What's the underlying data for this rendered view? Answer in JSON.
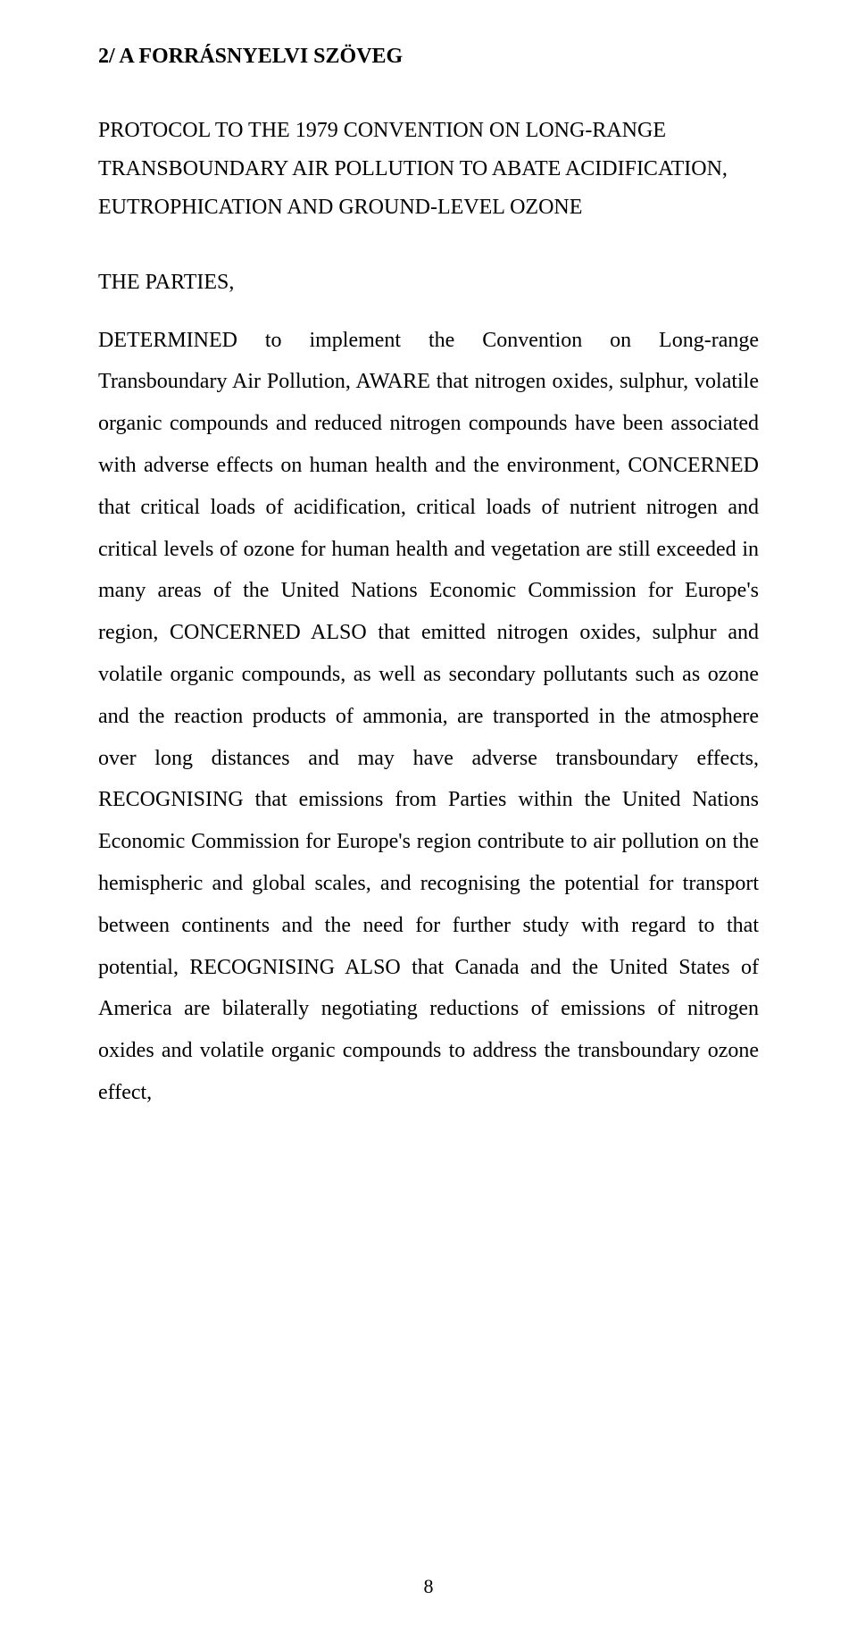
{
  "heading": "2/ A FORRÁSNYELVI SZÖVEG",
  "title": "PROTOCOL TO THE 1979 CONVENTION ON LONG-RANGE TRANSBOUNDARY AIR POLLUTION TO ABATE ACIDIFICATION, EUTROPHICATION AND GROUND-LEVEL OZONE",
  "parties": "THE PARTIES,",
  "body": "DETERMINED to implement the Convention on Long-range Transboundary Air Pollution, AWARE that nitrogen oxides, sulphur, volatile organic compounds and reduced nitrogen compounds have been associated with adverse effects on human health and the environment, CONCERNED that critical loads of acidification, critical loads of nutrient nitrogen and critical levels of ozone for human health and vegetation are still exceeded in many areas of the United Nations Economic Commission for Europe's region, CONCERNED ALSO that emitted nitrogen oxides, sulphur and volatile organic compounds, as well as secondary pollutants such as ozone and the reaction products of ammonia, are transported in the atmosphere over long distances and may have adverse transboundary effects, RECOGNISING that emissions from Parties within the United Nations Economic Commission for Europe's region contribute to air pollution on the hemispheric and global scales, and recognising the potential for transport between continents and the need for further study with regard to that potential, RECOGNISING ALSO that Canada and the United States of America are bilaterally negotiating reductions of emissions of nitrogen oxides and volatile organic compounds to address the transboundary ozone effect,",
  "page_number": "8",
  "colors": {
    "background": "#ffffff",
    "text": "#000000"
  },
  "typography": {
    "font_family": "Times New Roman",
    "body_fontsize_pt": 18,
    "line_height": 1.95
  }
}
